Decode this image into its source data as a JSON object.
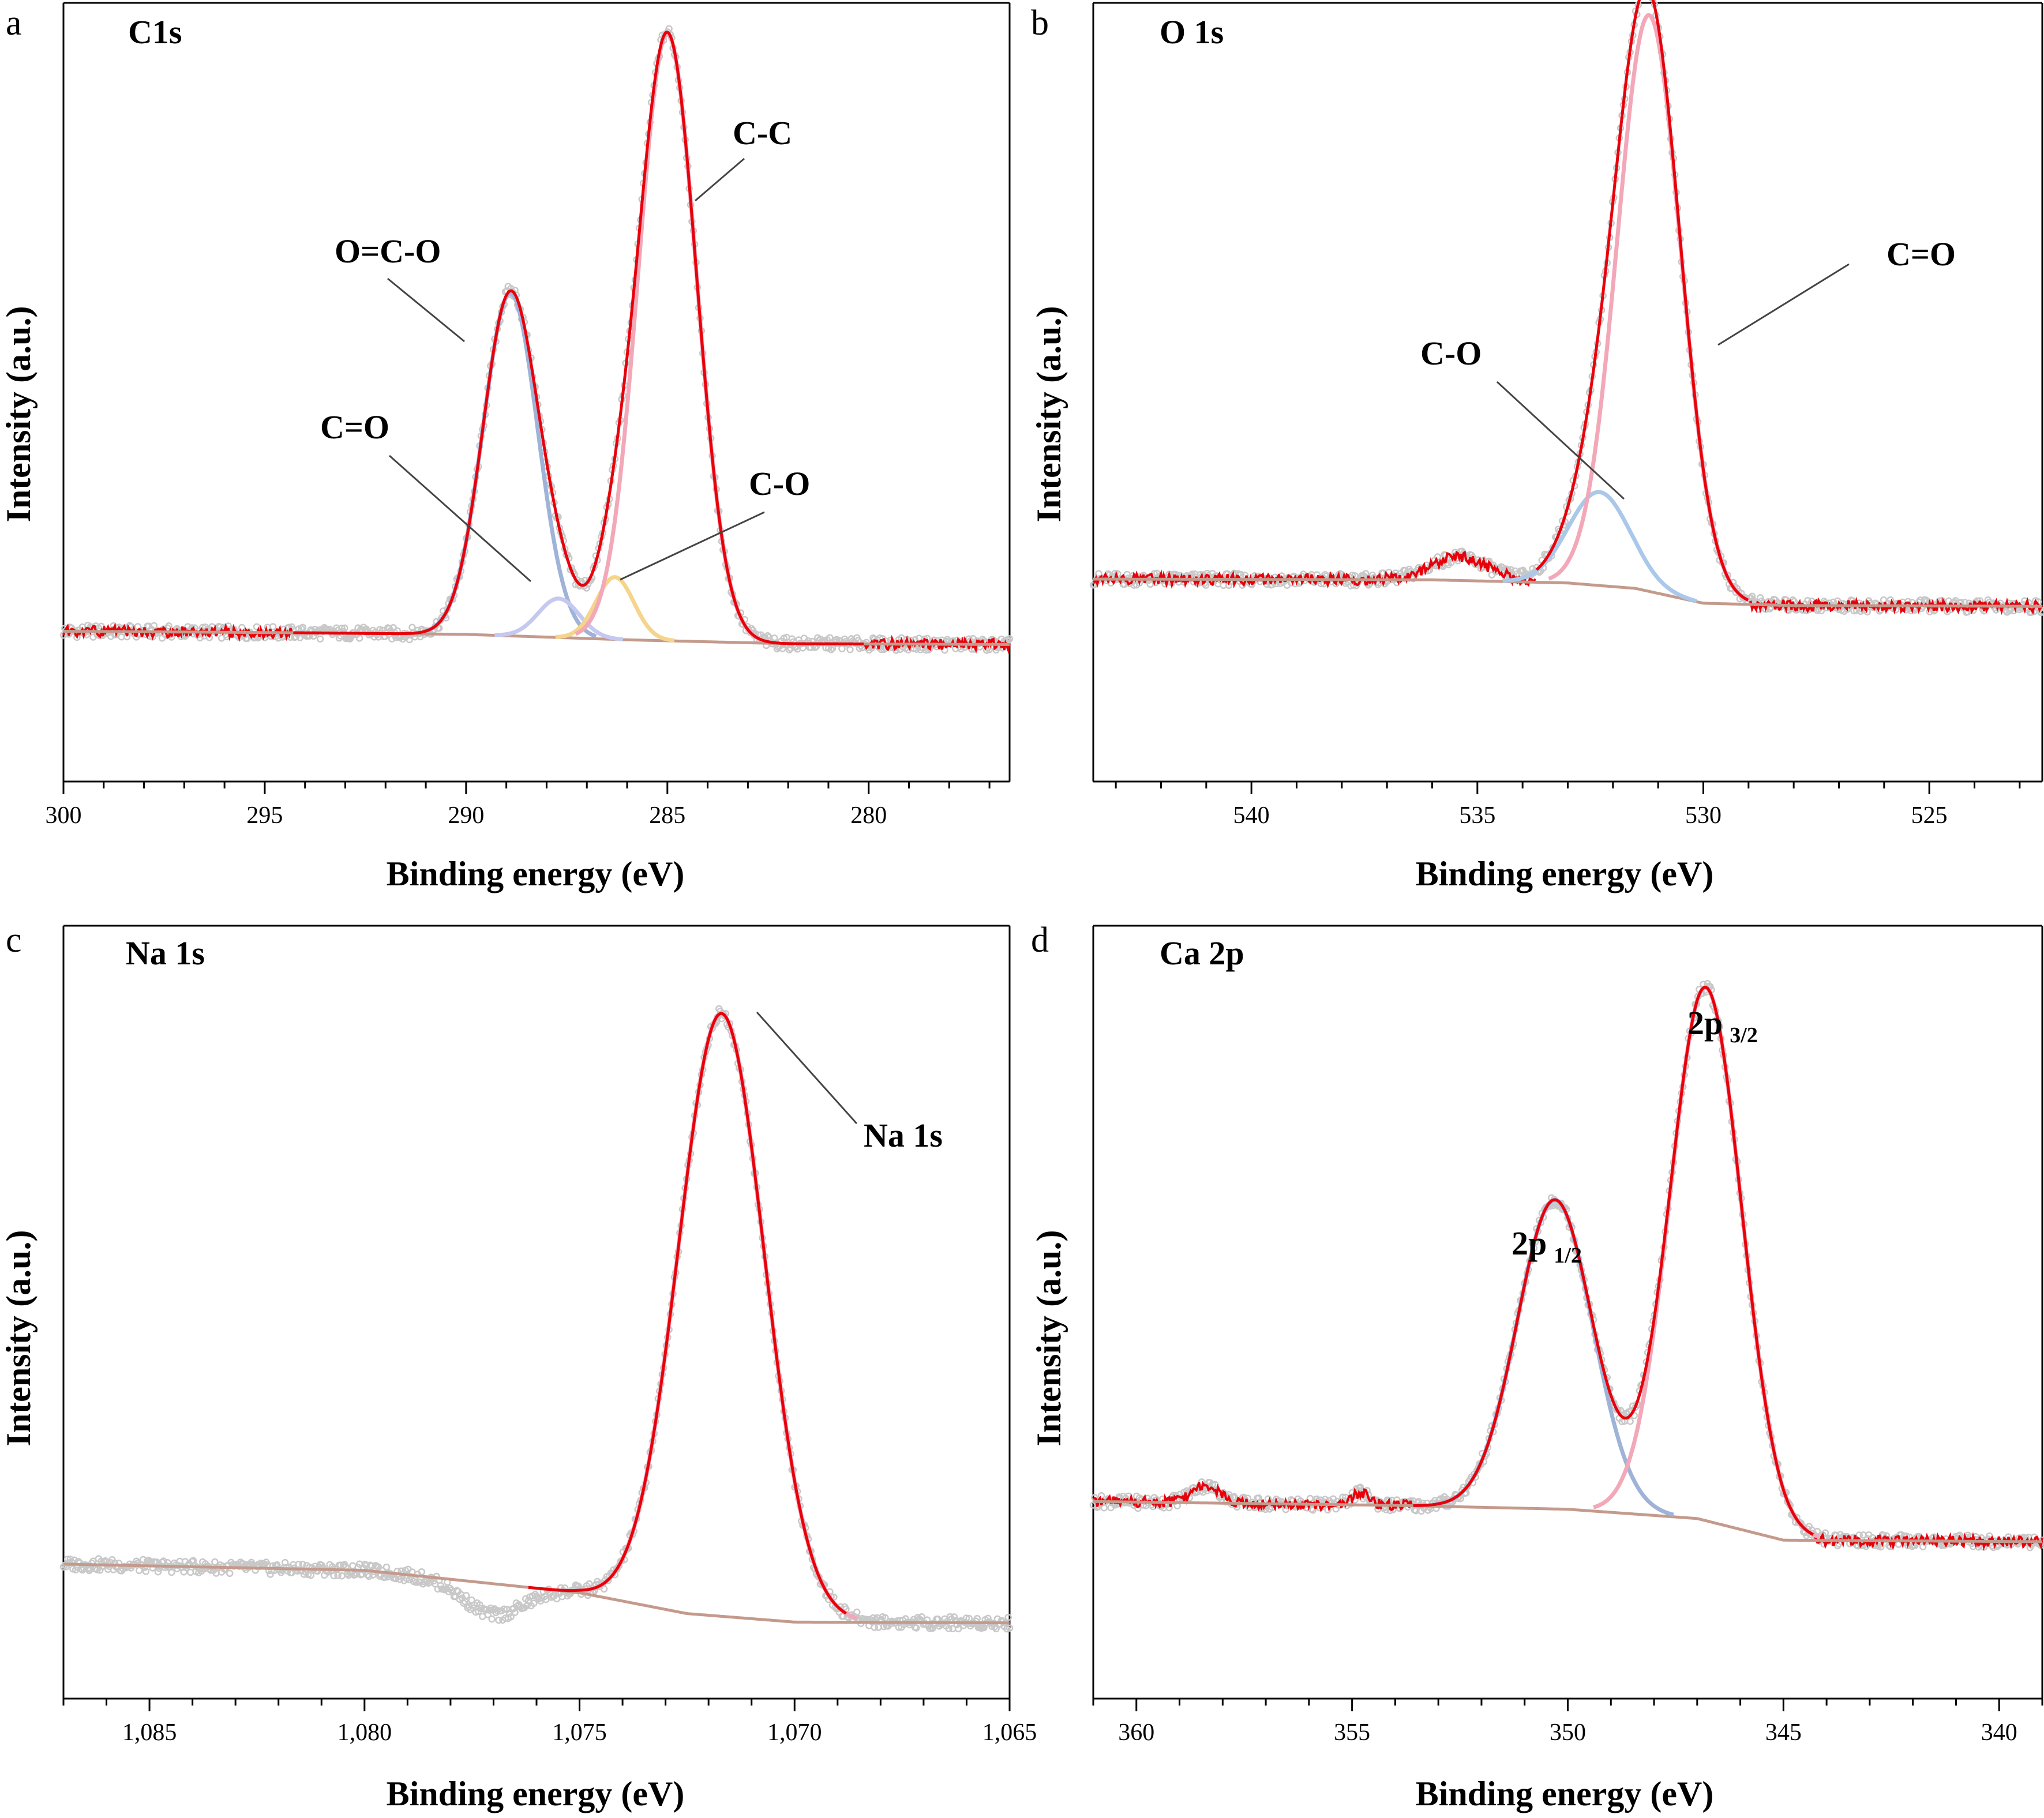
{
  "chart_data": [
    {
      "type": "line",
      "panel": "a",
      "title": "C1s",
      "xlabel": "Binding energy (eV)",
      "ylabel": "Intensity (a.u.)",
      "xlim": [
        300,
        276.5
      ],
      "ylim": [
        0,
        100
      ],
      "xticks": [
        300,
        295,
        290,
        285,
        280
      ],
      "xtick_labels": [
        "300",
        "295",
        "290",
        "285",
        "280"
      ],
      "baseline": [
        [
          300,
          19.3
        ],
        [
          294,
          19.1
        ],
        [
          290,
          18.9
        ],
        [
          286,
          18.2
        ],
        [
          282,
          17.7
        ],
        [
          276.5,
          17.6
        ]
      ],
      "envelope_range": [
        294.3,
        280.1
      ],
      "background_range": [
        300,
        276.5
      ],
      "components": [
        {
          "name": "O=C-O",
          "center": 288.9,
          "height": 44,
          "fwhm": 1.6,
          "color": "#9fb3d8"
        },
        {
          "name": "C=O",
          "center": 287.7,
          "height": 5,
          "fwhm": 1.2,
          "color": "#c6c9ef"
        },
        {
          "name": "C-O",
          "center": 286.3,
          "height": 8,
          "fwhm": 1.1,
          "color": "#f5d58c"
        },
        {
          "name": "C-C",
          "center": 285.0,
          "height": 78,
          "fwhm": 1.7,
          "color": "#f2a8b8"
        }
      ],
      "annotations": [
        {
          "text": "C-C",
          "peak": "C-C"
        },
        {
          "text": "O=C-O",
          "peak": "O=C-O"
        },
        {
          "text": "C=O",
          "peak": "C=O"
        },
        {
          "text": "C-O",
          "peak": "C-O"
        }
      ]
    },
    {
      "type": "line",
      "panel": "b",
      "title": "O 1s",
      "xlabel": "Binding energy (eV)",
      "ylabel": "Intensity (a.u.)",
      "xlim": [
        543.5,
        522.5
      ],
      "ylim": [
        0,
        100
      ],
      "xticks": [
        540,
        535,
        530,
        525
      ],
      "xtick_labels": [
        "540",
        "535",
        "530",
        "525"
      ],
      "baseline": [
        [
          543.5,
          26.0
        ],
        [
          536,
          25.9
        ],
        [
          533,
          25.5
        ],
        [
          531.5,
          24.8
        ],
        [
          530,
          22.9
        ],
        [
          528,
          22.6
        ],
        [
          522.5,
          22.5
        ]
      ],
      "envelope_range": [
        533.7,
        529.0
      ],
      "background_range": [
        543.5,
        522.5
      ],
      "components": [
        {
          "name": "C-O",
          "center": 532.3,
          "height": 12,
          "fwhm": 1.6,
          "color": "#a9c8ea"
        },
        {
          "name": "C=O",
          "center": 531.2,
          "height": 74,
          "fwhm": 1.65,
          "color": "#f2a8b8"
        }
      ],
      "data_bumps": [
        {
          "center": 535.4,
          "height": 3,
          "width": 1.5
        }
      ],
      "annotations": [
        {
          "text": "C=O",
          "peak": "C=O"
        },
        {
          "text": "C-O",
          "peak": "C-O"
        }
      ]
    },
    {
      "type": "line",
      "panel": "c",
      "title": "Na 1s",
      "xlabel": "Binding energy (eV)",
      "ylabel": "Intensity (a.u.)",
      "xlim": [
        1087,
        1065
      ],
      "ylim": [
        0,
        100
      ],
      "xticks": [
        1085,
        1080,
        1075,
        1070,
        1065
      ],
      "xtick_labels": [
        "1,085",
        "1,080",
        "1,075",
        "1,070",
        "1,065"
      ],
      "baseline": [
        [
          1087,
          17.4
        ],
        [
          1080,
          16.6
        ],
        [
          1075,
          13.7
        ],
        [
          1072.5,
          11.0
        ],
        [
          1070,
          9.9
        ],
        [
          1065,
          9.8
        ]
      ],
      "envelope_range": [
        1076.2,
        1068.8
      ],
      "background_range": [],
      "components": [
        {
          "name": "Na 1s",
          "center": 1071.7,
          "height": 78,
          "fwhm": 2.35,
          "color": "#f2a8b8"
        }
      ],
      "data_bumps": [
        {
          "center": 1077.0,
          "height": -4,
          "width": 1.6
        }
      ],
      "annotations": [
        {
          "text": "Na 1s",
          "peak": "Na 1s"
        }
      ]
    },
    {
      "type": "line",
      "panel": "d",
      "title": "Ca 2p",
      "xlabel": "Binding energy (eV)",
      "ylabel": "Intensity (a.u.)",
      "xlim": [
        361,
        339
      ],
      "ylim": [
        0,
        100
      ],
      "xticks": [
        360,
        355,
        350,
        345,
        340
      ],
      "xtick_labels": [
        "360",
        "355",
        "350",
        "345",
        "340"
      ],
      "baseline": [
        [
          361,
          25.5
        ],
        [
          354,
          25.0
        ],
        [
          350,
          24.5
        ],
        [
          347,
          23.3
        ],
        [
          345,
          20.5
        ],
        [
          339,
          20.3
        ]
      ],
      "envelope_range": [
        353.6,
        344.3
      ],
      "background_range": [
        361,
        339
      ],
      "data_bumps": [
        {
          "center": 358.4,
          "height": 2.2,
          "width": 0.8
        },
        {
          "center": 354.8,
          "height": 1.5,
          "width": 0.5
        }
      ],
      "components": [
        {
          "name": "2p 1/2",
          "center": 350.3,
          "height": 40,
          "fwhm": 2.05,
          "color": "#9fb3d8"
        },
        {
          "name": "2p 3/2",
          "center": 346.8,
          "height": 69,
          "fwhm": 1.95,
          "color": "#f2a8b8"
        }
      ],
      "annotations": [
        {
          "text": "2p",
          "sub": "3/2",
          "peak": "2p 3/2"
        },
        {
          "text": "2p",
          "sub": "1/2",
          "peak": "2p 1/2"
        }
      ]
    }
  ],
  "panels": [
    {
      "letter": "a",
      "title": "C1s",
      "xlabel": "Binding energy (eV)",
      "ylabel": "Intensity (a.u.)",
      "ann": [
        "C-C",
        "O=C-O",
        "C=O",
        "C-O"
      ]
    },
    {
      "letter": "b",
      "title": "O 1s",
      "xlabel": "Binding energy (eV)",
      "ylabel": "Intensity (a.u.)",
      "ann": [
        "C=O",
        "C-O"
      ]
    },
    {
      "letter": "c",
      "title": "Na 1s",
      "xlabel": "Binding energy (eV)",
      "ylabel": "Intensity (a.u.)",
      "ann": [
        "Na 1s"
      ]
    },
    {
      "letter": "d",
      "title": "Ca 2p",
      "xlabel": "Binding energy (eV)",
      "ylabel": "Intensity (a.u.)",
      "ann": [
        "2p",
        "3/2",
        "2p",
        "1/2"
      ]
    }
  ],
  "colors": {
    "envelope": "#e8000b",
    "background": "#c49a8c",
    "raw_data": "#c8c8c8",
    "axis": "#000000",
    "leader": "#444444"
  }
}
